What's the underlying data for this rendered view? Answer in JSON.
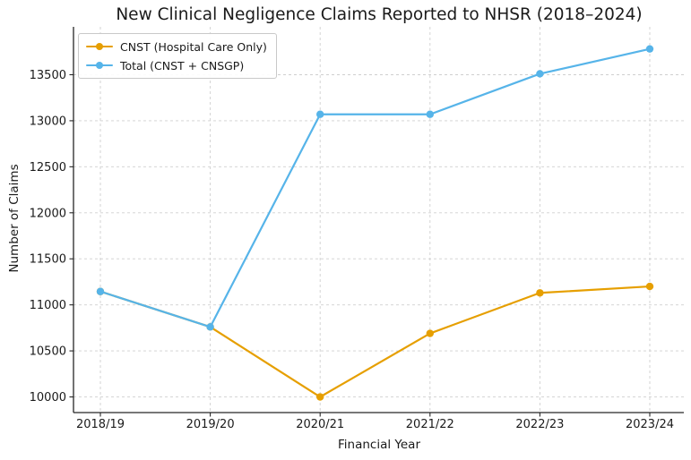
{
  "chart_data": {
    "type": "line",
    "title": "New Clinical Negligence Claims Reported to NHSR (2018–2024)",
    "xlabel": "Financial Year",
    "ylabel": "Number of Claims",
    "categories": [
      "2018/19",
      "2019/20",
      "2020/21",
      "2021/22",
      "2022/23",
      "2023/24"
    ],
    "series": [
      {
        "name": "CNST (Hospital Care Only)",
        "color": "#E69F00",
        "values": [
          11145,
          10760,
          10000,
          10690,
          11130,
          11200
        ]
      },
      {
        "name": "Total (CNST + CNSGP)",
        "color": "#56B4E9",
        "values": [
          11145,
          10760,
          13070,
          13070,
          13510,
          13780
        ]
      }
    ],
    "y_ticks": [
      10000,
      10500,
      11000,
      11500,
      12000,
      12500,
      13000,
      13500
    ],
    "ylim": [
      9830,
      14020
    ],
    "grid": true,
    "grid_style": "dashed",
    "legend_position": "upper-left"
  },
  "colors": {
    "axis": "#262626",
    "grid": "#cfcfcf",
    "text": "#1a1a1a",
    "background": "#ffffff"
  }
}
